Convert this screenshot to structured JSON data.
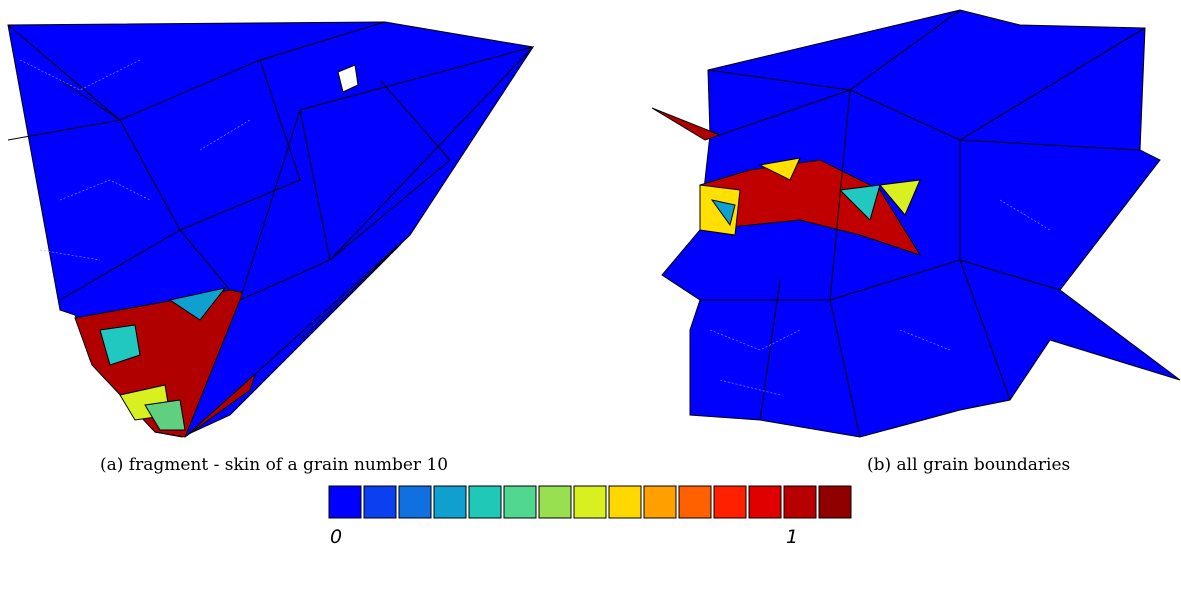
{
  "panels": [
    {
      "caption": "(a) fragment - skin of a grain number 10"
    },
    {
      "caption": "(b) all grain boundaries"
    }
  ],
  "colorbar": {
    "min_label": "0",
    "max_label": "1"
  }
}
